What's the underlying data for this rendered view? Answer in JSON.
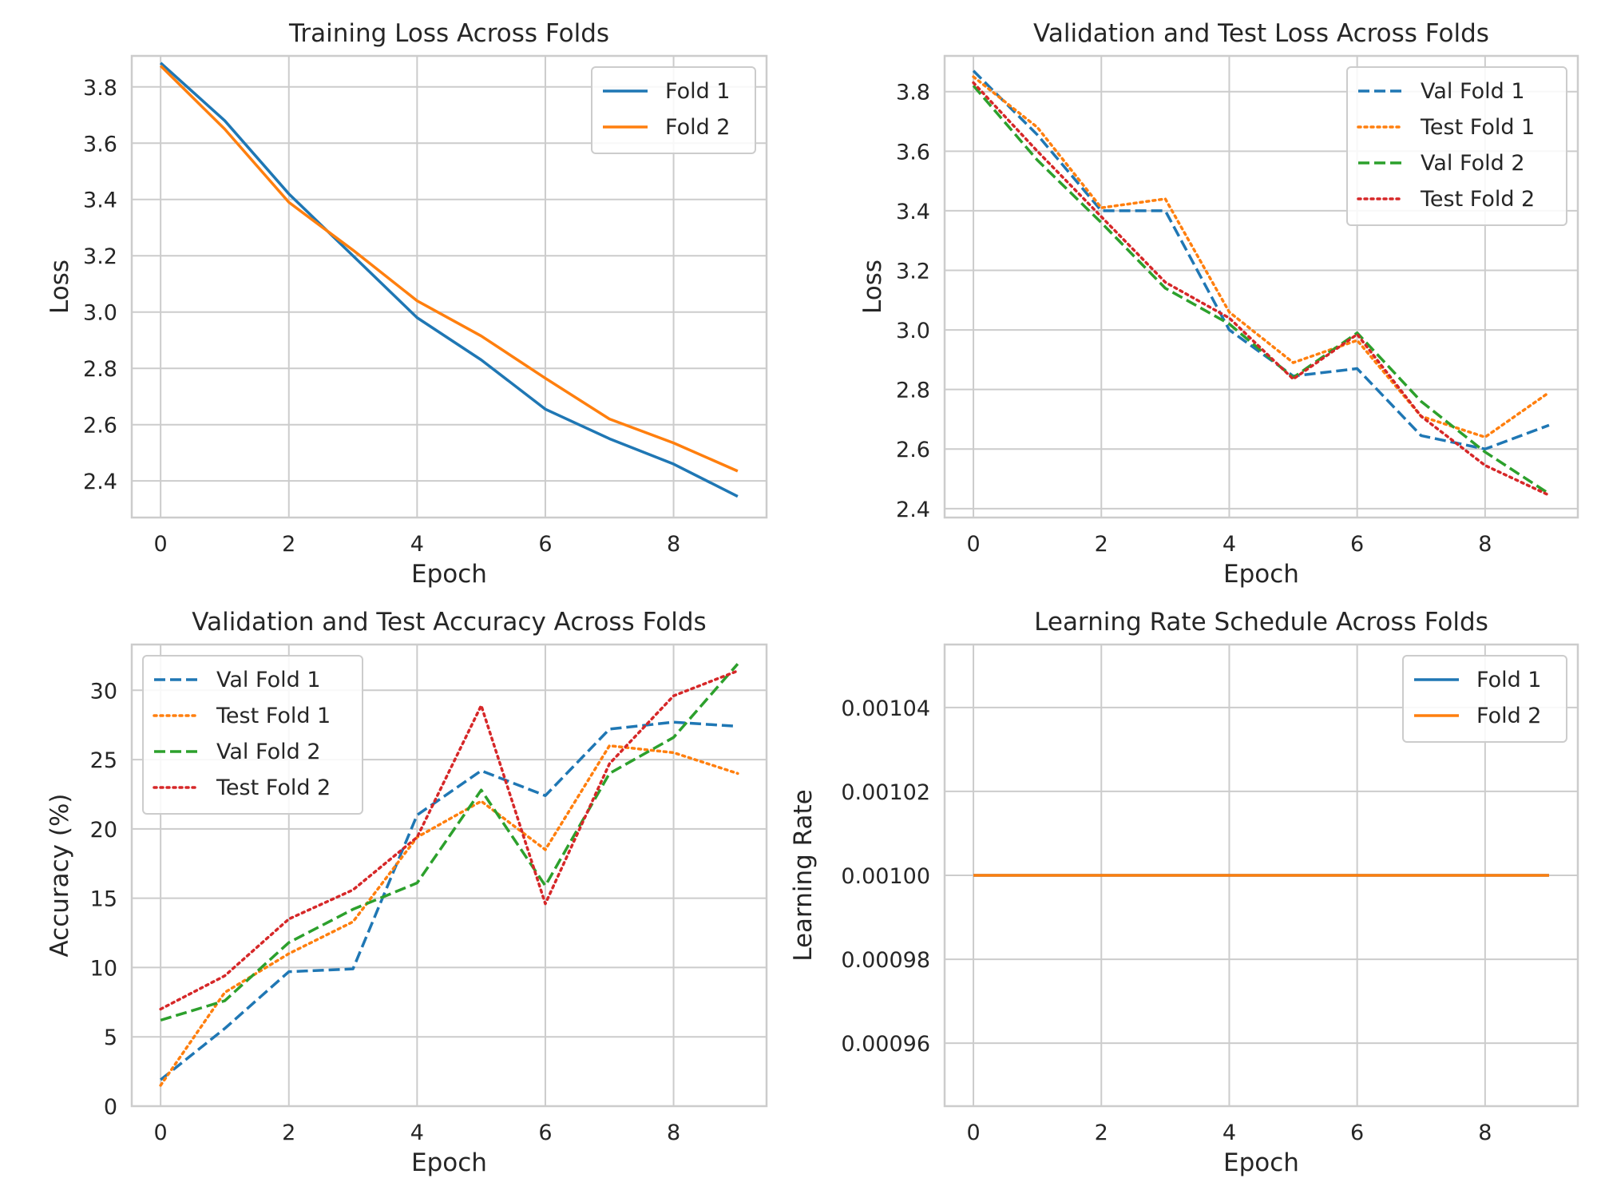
{
  "chart_data": [
    {
      "type": "line",
      "title": "Training Loss Across Folds",
      "xlabel": "Epoch",
      "ylabel": "Loss",
      "xlim": [
        -0.45,
        9.45
      ],
      "ylim": [
        2.27,
        3.91
      ],
      "xticks": [
        0,
        2,
        4,
        6,
        8
      ],
      "yticks": [
        2.4,
        2.6,
        2.8,
        3.0,
        3.2,
        3.4,
        3.6,
        3.8
      ],
      "ytick_labels": [
        "2.4",
        "2.6",
        "2.8",
        "3.0",
        "3.2",
        "3.4",
        "3.6",
        "3.8"
      ],
      "grid": true,
      "legend": "top-right",
      "x": [
        0,
        1,
        2,
        3,
        4,
        5,
        6,
        7,
        8,
        9
      ],
      "series": [
        {
          "name": "Fold 1",
          "color": "#1f77b4",
          "dash": "solid",
          "values": [
            3.885,
            3.68,
            3.42,
            3.2,
            2.98,
            2.83,
            2.655,
            2.55,
            2.46,
            2.345
          ]
        },
        {
          "name": "Fold 2",
          "color": "#ff7f0e",
          "dash": "solid",
          "values": [
            3.875,
            3.65,
            3.39,
            3.22,
            3.04,
            2.915,
            2.765,
            2.62,
            2.535,
            2.435
          ]
        }
      ]
    },
    {
      "type": "line",
      "title": "Validation and Test Loss Across Folds",
      "xlabel": "Epoch",
      "ylabel": "Loss",
      "xlim": [
        -0.45,
        9.45
      ],
      "ylim": [
        2.37,
        3.92
      ],
      "xticks": [
        0,
        2,
        4,
        6,
        8
      ],
      "yticks": [
        2.4,
        2.6,
        2.8,
        3.0,
        3.2,
        3.4,
        3.6,
        3.8
      ],
      "ytick_labels": [
        "2.4",
        "2.6",
        "2.8",
        "3.0",
        "3.2",
        "3.4",
        "3.6",
        "3.8"
      ],
      "grid": true,
      "legend": "top-right",
      "x": [
        0,
        1,
        2,
        3,
        4,
        5,
        6,
        7,
        8,
        9
      ],
      "series": [
        {
          "name": "Val Fold 1",
          "color": "#1f77b4",
          "dash": "dashed",
          "values": [
            3.87,
            3.655,
            3.4,
            3.4,
            3.0,
            2.845,
            2.87,
            2.645,
            2.6,
            2.68
          ]
        },
        {
          "name": "Test Fold 1",
          "color": "#ff7f0e",
          "dash": "dotted",
          "values": [
            3.85,
            3.68,
            3.41,
            3.44,
            3.06,
            2.89,
            2.965,
            2.71,
            2.64,
            2.79
          ]
        },
        {
          "name": "Val Fold 2",
          "color": "#2ca02c",
          "dash": "dashed",
          "values": [
            3.82,
            3.57,
            3.36,
            3.14,
            3.02,
            2.84,
            2.99,
            2.76,
            2.59,
            2.45
          ]
        },
        {
          "name": "Test Fold 2",
          "color": "#d62728",
          "dash": "dotted",
          "values": [
            3.83,
            3.6,
            3.38,
            3.16,
            3.04,
            2.835,
            2.985,
            2.71,
            2.545,
            2.445
          ]
        }
      ]
    },
    {
      "type": "line",
      "title": "Validation and Test Accuracy Across Folds",
      "xlabel": "Epoch",
      "ylabel": "Accuracy (%)",
      "xlim": [
        -0.45,
        9.45
      ],
      "ylim": [
        0,
        33.3
      ],
      "xticks": [
        0,
        2,
        4,
        6,
        8
      ],
      "yticks": [
        0,
        5,
        10,
        15,
        20,
        25,
        30
      ],
      "ytick_labels": [
        "0",
        "5",
        "10",
        "15",
        "20",
        "25",
        "30"
      ],
      "grid": true,
      "legend": "top-left",
      "x": [
        0,
        1,
        2,
        3,
        4,
        5,
        6,
        7,
        8,
        9
      ],
      "series": [
        {
          "name": "Val Fold 1",
          "color": "#1f77b4",
          "dash": "dashed",
          "values": [
            1.9,
            5.6,
            9.7,
            9.9,
            21.0,
            24.2,
            22.4,
            27.2,
            27.7,
            27.4
          ]
        },
        {
          "name": "Test Fold 1",
          "color": "#ff7f0e",
          "dash": "dotted",
          "values": [
            1.5,
            8.2,
            11.0,
            13.3,
            19.4,
            22.0,
            18.5,
            26.0,
            25.5,
            24.0
          ]
        },
        {
          "name": "Val Fold 2",
          "color": "#2ca02c",
          "dash": "dashed",
          "values": [
            6.2,
            7.6,
            11.8,
            14.2,
            16.1,
            22.8,
            15.9,
            24.0,
            26.6,
            31.9
          ]
        },
        {
          "name": "Test Fold 2",
          "color": "#d62728",
          "dash": "dotted",
          "values": [
            7.0,
            9.4,
            13.5,
            15.6,
            19.4,
            28.9,
            14.6,
            24.7,
            29.6,
            31.4
          ]
        }
      ]
    },
    {
      "type": "line",
      "title": "Learning Rate Schedule Across Folds",
      "xlabel": "Epoch",
      "ylabel": "Learning Rate",
      "xlim": [
        -0.45,
        9.45
      ],
      "ylim": [
        0.000945,
        0.001055
      ],
      "xticks": [
        0,
        2,
        4,
        6,
        8
      ],
      "yticks": [
        0.00096,
        0.00098,
        0.001,
        0.00102,
        0.00104
      ],
      "ytick_labels": [
        "0.00096",
        "0.00098",
        "0.00100",
        "0.00102",
        "0.00104"
      ],
      "grid": true,
      "legend": "top-right",
      "x": [
        0,
        1,
        2,
        3,
        4,
        5,
        6,
        7,
        8,
        9
      ],
      "series": [
        {
          "name": "Fold 1",
          "color": "#1f77b4",
          "dash": "solid",
          "values": [
            0.001,
            0.001,
            0.001,
            0.001,
            0.001,
            0.001,
            0.001,
            0.001,
            0.001,
            0.001
          ]
        },
        {
          "name": "Fold 2",
          "color": "#ff7f0e",
          "dash": "solid",
          "values": [
            0.001,
            0.001,
            0.001,
            0.001,
            0.001,
            0.001,
            0.001,
            0.001,
            0.001,
            0.001
          ]
        }
      ]
    }
  ]
}
